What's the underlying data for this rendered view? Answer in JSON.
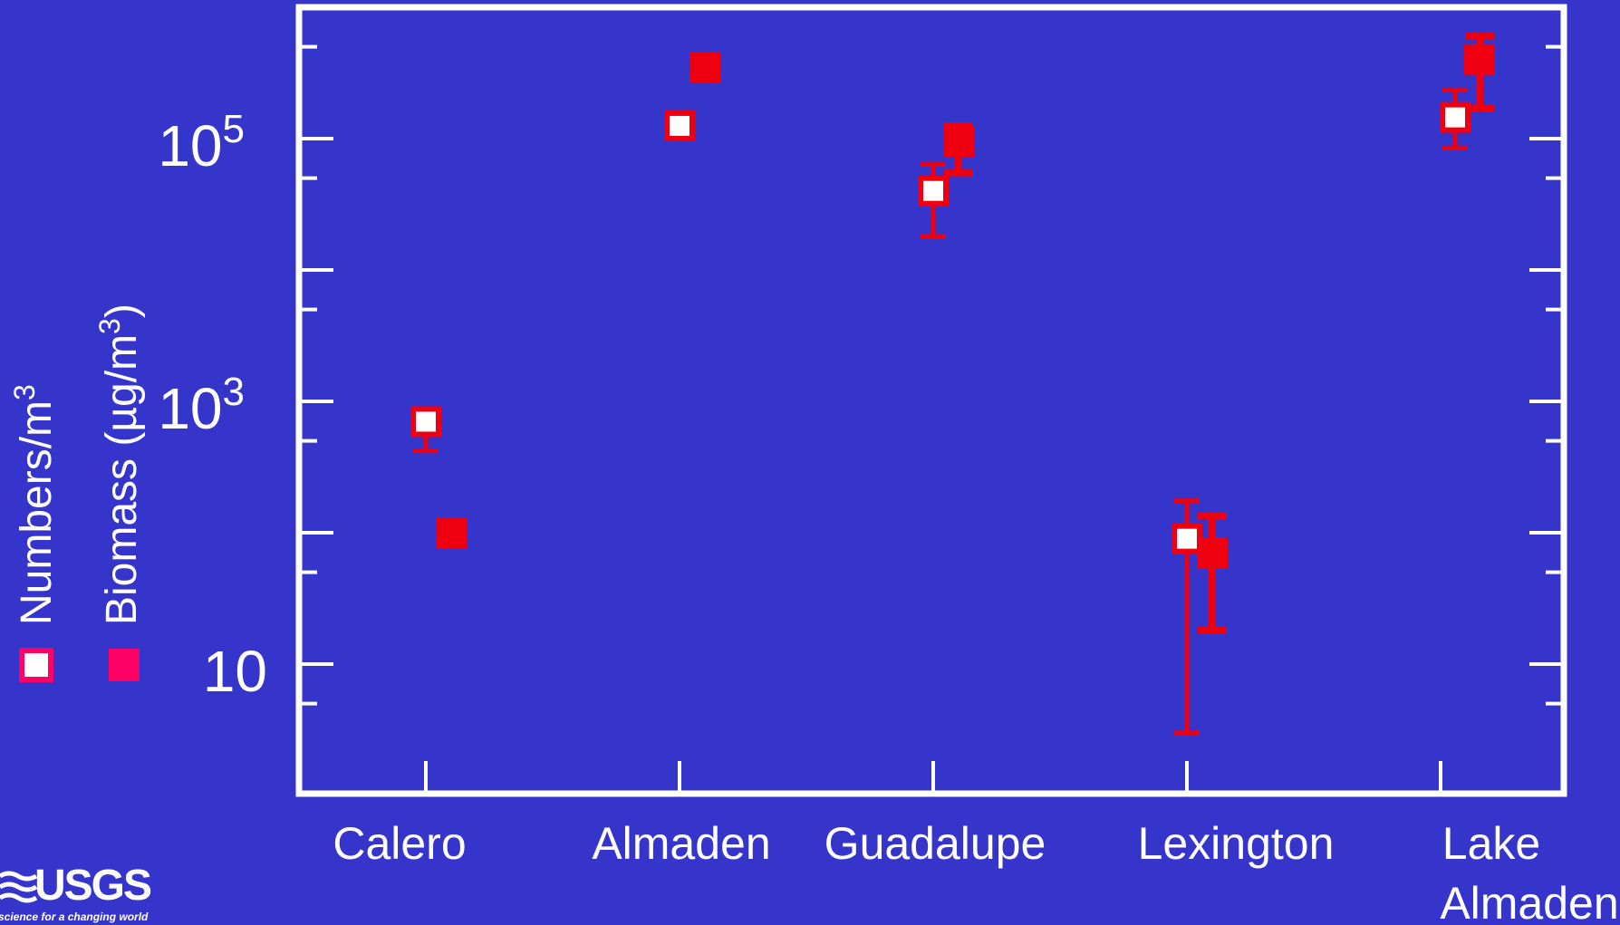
{
  "chart_data": {
    "type": "scatter",
    "y_scale": "log",
    "y_range": [
      2,
      1000000
    ],
    "y_tick_labels": [
      {
        "value": 10,
        "base": "10",
        "exp": ""
      },
      {
        "value": 1000,
        "base": "10",
        "exp": "3"
      },
      {
        "value": 100000,
        "base": "10",
        "exp": "5"
      }
    ],
    "categories": [
      {
        "line1": "Calero",
        "line2": ""
      },
      {
        "line1": "Almaden",
        "line2": ""
      },
      {
        "line1": "Guadalupe",
        "line2": ""
      },
      {
        "line1": "Lexington",
        "line2": ""
      },
      {
        "line1": "Lake",
        "line2": "Almaden"
      }
    ],
    "legend": {
      "placement": "left-vertical",
      "numbers_label": "Numbers/m",
      "numbers_sup": "3",
      "biomass_label": "Biomass (µg/m",
      "biomass_sup": "3",
      "biomass_close": ")"
    },
    "series": [
      {
        "key": "numbers",
        "marker": "open-square",
        "points": [
          {
            "y": 700,
            "low": 420,
            "high": 700
          },
          {
            "y": 125000,
            "low": null,
            "high": null
          },
          {
            "y": 40000,
            "low": 18000,
            "high": 64000
          },
          {
            "y": 90,
            "low": 3,
            "high": 175
          }
        ]
      },
      {
        "key": "biomass",
        "marker": "filled-square",
        "points": [
          {
            "y": 100,
            "low": null,
            "high": null
          },
          {
            "y": 350000,
            "low": null,
            "high": null
          },
          {
            "y": 95000,
            "low": 55000,
            "high": 125000
          },
          {
            "y": 70,
            "low": 18,
            "high": 135
          },
          {
            "y": 400000,
            "low": 170000,
            "high": 600000
          }
        ]
      },
      {
        "key": "numbers-lake-almaden",
        "marker": "open-square",
        "points": [
          {
            "y": 145000,
            "low": 85000,
            "high": 235000
          }
        ]
      }
    ],
    "colors": {
      "background": "#3535cc",
      "axis": "#ffffff",
      "marker": "#ee0011",
      "legend_marker": "#ff0066"
    },
    "grid": false
  },
  "branding": {
    "logo": "USGS",
    "tagline": "science for a changing world"
  }
}
